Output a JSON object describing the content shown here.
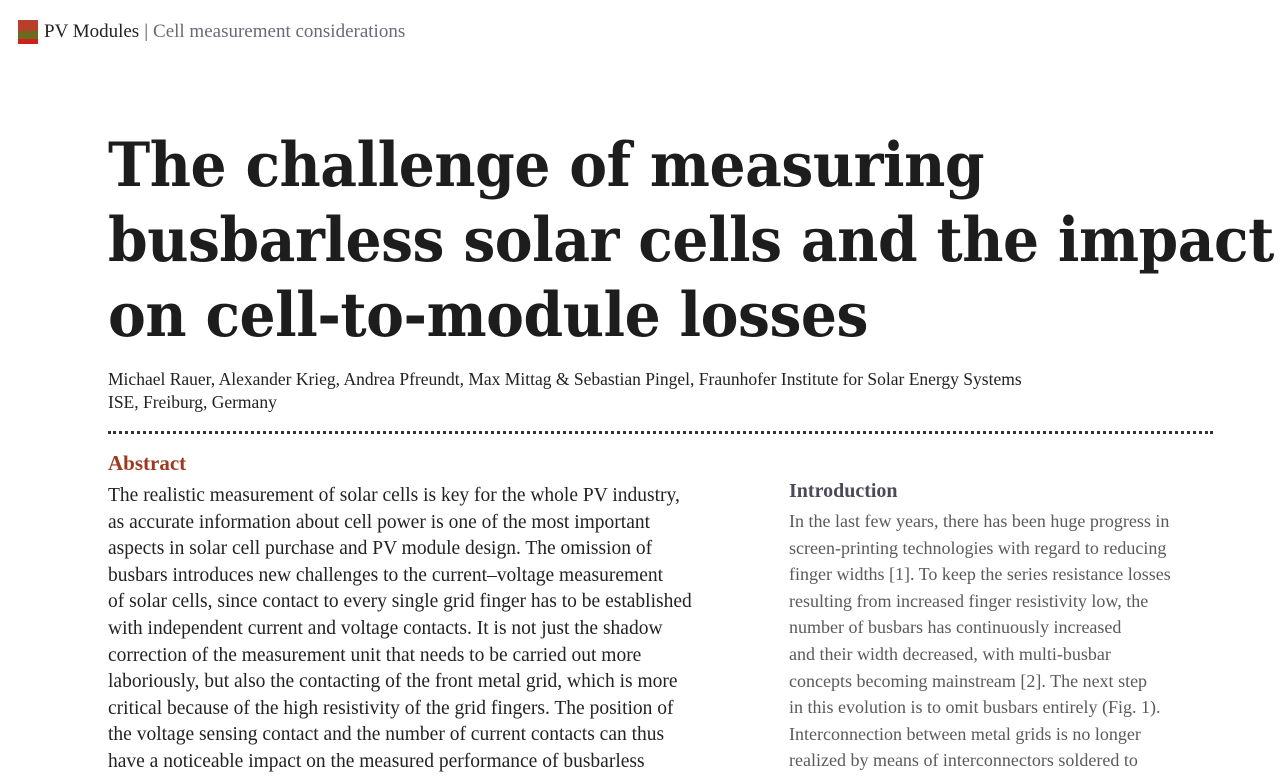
{
  "header": {
    "section": "PV Modules",
    "separator": "|",
    "subsection": "Cell measurement considerations"
  },
  "title_lines": [
    "The challenge of measuring",
    "busbarless solar cells and the impact",
    "on cell-to-module losses"
  ],
  "authors_lines": [
    "Michael Rauer, Alexander Krieg, Andrea Pfreundt, Max Mittag & Sebastian Pingel, Fraunhofer Institute for Solar Energy Systems",
    "ISE, Freiburg, Germany"
  ],
  "abstract": {
    "heading": "Abstract",
    "lines": [
      "The realistic measurement of solar cells is key for the whole PV industry,",
      "as accurate information about cell power is one of the most important",
      "aspects in solar cell purchase and PV module design. The omission of",
      "busbars introduces new challenges to the current–voltage measurement",
      "of solar cells, since contact to every single grid finger has to be established",
      "with independent current and voltage contacts. It is not just the shadow",
      "correction of the measurement unit that needs to be carried out more",
      "laboriously, but also the contacting of the front metal grid, which is more",
      "critical because of the high resistivity of the grid fingers. The position of",
      "the voltage sensing contact and the number of current contacts can thus",
      "have a noticeable impact on the measured performance of busbarless"
    ]
  },
  "introduction": {
    "heading": "Introduction",
    "lines": [
      "In the last few years, there has been huge progress in",
      "screen-printing technologies with regard to reducing",
      "finger widths [1]. To keep the series resistance losses",
      "resulting from increased finger resistivity low, the",
      "number of busbars has continuously increased",
      "and their width decreased, with multi-busbar",
      "concepts becoming mainstream [2]. The next step",
      "in this evolution is to omit busbars entirely (Fig. 1).",
      "Interconnection between metal grids is no longer",
      "realized by means of interconnectors soldered to"
    ]
  },
  "colors": {
    "abstract_heading": "#9c3a1f",
    "intro_heading": "#4a4a5a"
  }
}
